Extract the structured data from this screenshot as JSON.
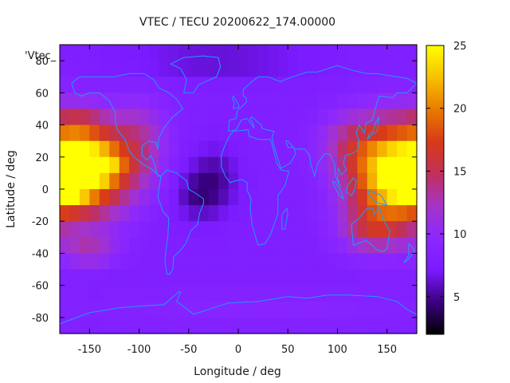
{
  "chart_data": {
    "type": "heatmap",
    "title": "VTEC / TECU 20200622_174.00000",
    "xlabel": "Longitude / deg",
    "ylabel": "Latitude / deg",
    "key_label": "'Vtec_",
    "xlim": [
      -180,
      180
    ],
    "ylim": [
      -90,
      90
    ],
    "xticks": [
      -150,
      -100,
      -50,
      0,
      50,
      100,
      150
    ],
    "yticks": [
      -80,
      -60,
      -40,
      -20,
      0,
      20,
      40,
      60,
      80
    ],
    "colorbar": {
      "range": [
        2,
        25
      ],
      "ticks": [
        5,
        10,
        15,
        20,
        25
      ]
    },
    "colormap": [
      "#000000",
      "#3a0080",
      "#7a1aff",
      "#8c28ff",
      "#a534c8",
      "#c0305a",
      "#d83a18",
      "#ea7a00",
      "#f7c000",
      "#ffff00"
    ],
    "coastline_color": "#1e9bff",
    "grid": {
      "lon_step": 10,
      "lat_step": 10
    },
    "background_vtec": 8,
    "regions": [
      {
        "lon": -155,
        "lat": 12,
        "sx": 32,
        "sy": 20,
        "vtec": 15
      },
      {
        "lon": -145,
        "lat": 15,
        "sx": 18,
        "sy": 7,
        "vtec": 8
      },
      {
        "lon": -165,
        "lat": 0,
        "sx": 12,
        "sy": 6,
        "vtec": 4
      },
      {
        "lon": -160,
        "lat": 40,
        "sx": 18,
        "sy": 8,
        "vtec": 3
      },
      {
        "lon": -150,
        "lat": -38,
        "sx": 20,
        "sy": 7,
        "vtec": 4
      },
      {
        "lon": 150,
        "lat": 10,
        "sx": 30,
        "sy": 22,
        "vtec": 14
      },
      {
        "lon": 170,
        "lat": 5,
        "sx": 14,
        "sy": 10,
        "vtec": 5
      },
      {
        "lon": 135,
        "lat": -25,
        "sx": 22,
        "sy": 10,
        "vtec": 5
      },
      {
        "lon": 110,
        "lat": 30,
        "sx": 22,
        "sy": 12,
        "vtec": 3
      },
      {
        "lon": -100,
        "lat": 30,
        "sx": 20,
        "sy": 18,
        "vtec": 4
      },
      {
        "lon": -25,
        "lat": 5,
        "sx": 18,
        "sy": 15,
        "vtec": -3
      },
      {
        "lon": -45,
        "lat": -5,
        "sx": 15,
        "sy": 10,
        "vtec": -2
      },
      {
        "lon": -20,
        "lat": 80,
        "sx": 70,
        "sy": 8,
        "vtec": -2
      },
      {
        "lon": 30,
        "lat": -75,
        "sx": 120,
        "sy": 8,
        "vtec": 1
      }
    ]
  }
}
